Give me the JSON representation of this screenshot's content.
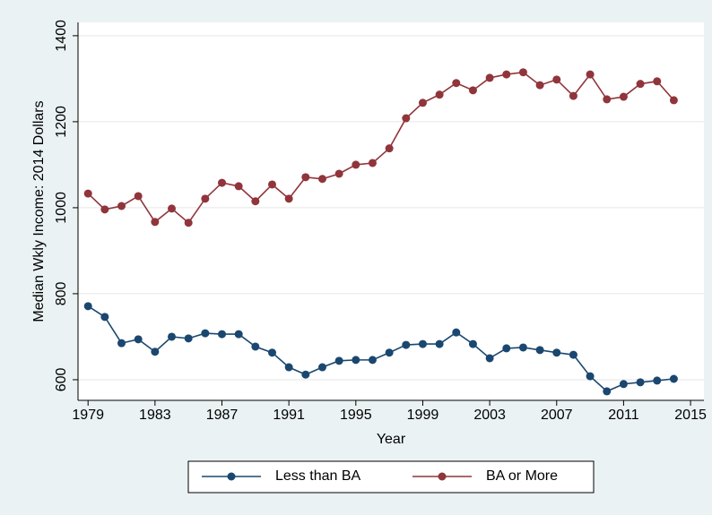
{
  "chart_data": {
    "type": "line",
    "y_label": "Median Wkly Income: 2014 Dollars",
    "x_label": "Year",
    "x": [
      1979,
      1980,
      1981,
      1982,
      1983,
      1984,
      1985,
      1986,
      1987,
      1988,
      1989,
      1990,
      1991,
      1992,
      1993,
      1994,
      1995,
      1996,
      1997,
      1998,
      1999,
      2000,
      2001,
      2002,
      2003,
      2004,
      2005,
      2006,
      2007,
      2008,
      2009,
      2010,
      2011,
      2012,
      2013,
      2014
    ],
    "series": [
      {
        "name": "Less than BA",
        "color": "#1a476f",
        "values": [
          771,
          746,
          685,
          694,
          665,
          700,
          696,
          708,
          706,
          706,
          677,
          663,
          629,
          612,
          629,
          644,
          646,
          646,
          663,
          681,
          683,
          683,
          710,
          683,
          650,
          673,
          675,
          669,
          663,
          658,
          608,
          573,
          590,
          594,
          598,
          602
        ]
      },
      {
        "name": "BA or More",
        "color": "#90353b",
        "values": [
          1033,
          996,
          1004,
          1027,
          967,
          998,
          965,
          1021,
          1058,
          1050,
          1015,
          1054,
          1021,
          1071,
          1067,
          1079,
          1100,
          1104,
          1138,
          1208,
          1244,
          1263,
          1290,
          1273,
          1302,
          1310,
          1315,
          1285,
          1298,
          1260,
          1310,
          1252,
          1258,
          1288,
          1294,
          1250
        ]
      }
    ],
    "xlim": [
      1978.4,
      2015.8
    ],
    "xticks": [
      1979,
      1983,
      1987,
      1991,
      1995,
      1999,
      2003,
      2007,
      2011,
      2015
    ],
    "ylim": [
      552,
      1431
    ],
    "yticks": [
      600,
      800,
      1000,
      1200,
      1400
    ],
    "grid": true,
    "legend": "bottom"
  }
}
